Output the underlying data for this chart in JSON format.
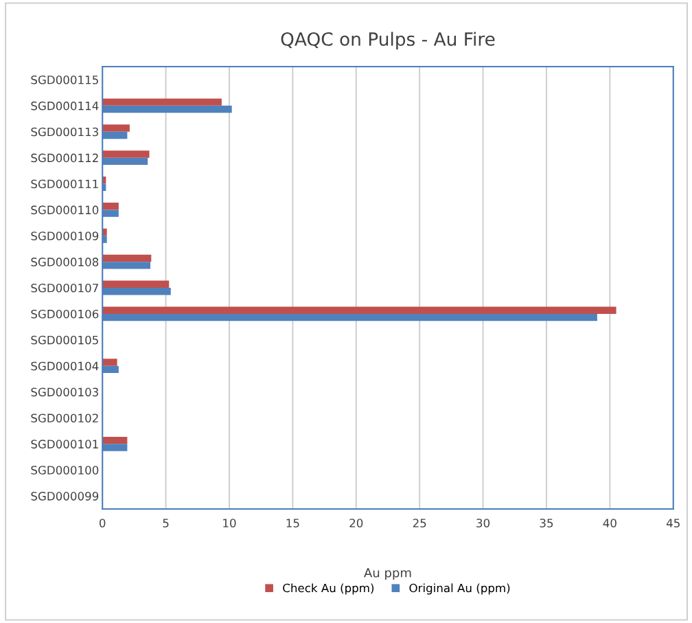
{
  "chart_data": {
    "type": "bar",
    "orientation": "horizontal",
    "title": "QAQC on Pulps - Au Fire",
    "xlabel": "Au ppm",
    "categories": [
      "SGD000115",
      "SGD000114",
      "SGD000113",
      "SGD000112",
      "SGD000111",
      "SGD000110",
      "SGD000109",
      "SGD000108",
      "SGD000107",
      "SGD000106",
      "SGD000105",
      "SGD000104",
      "SGD000103",
      "SGD000102",
      "SGD000101",
      "SGD000100",
      "SGD000099"
    ],
    "series": [
      {
        "name": "Check Au (ppm)",
        "color": "#c0504d",
        "values": [
          null,
          9.4,
          2.15,
          3.7,
          0.28,
          1.28,
          0.35,
          3.85,
          5.25,
          40.5,
          null,
          1.16,
          null,
          null,
          1.96,
          null,
          null
        ]
      },
      {
        "name": "Original Au (ppm)",
        "color": "#4f81bd",
        "values": [
          null,
          10.2,
          1.96,
          3.57,
          0.28,
          1.28,
          0.35,
          3.78,
          5.39,
          39.0,
          null,
          1.28,
          null,
          null,
          1.96,
          null,
          null
        ]
      }
    ],
    "xlim": [
      0,
      45
    ],
    "xticks": [
      0,
      5,
      10,
      15,
      20,
      25,
      30,
      35,
      40,
      45
    ],
    "grid": "x",
    "legend": "bottom"
  }
}
